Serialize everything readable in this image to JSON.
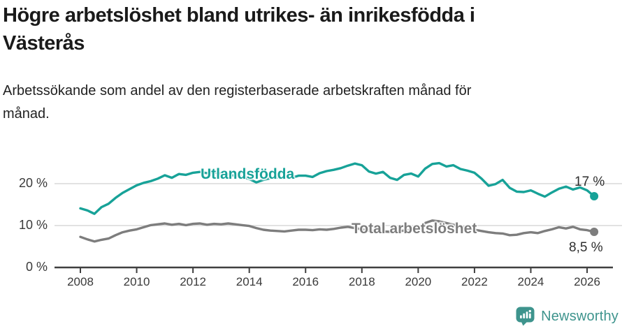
{
  "title": "Högre arbetslöshet bland utrikes- än inrikesfödda i\nVästerås",
  "subtitle": "Arbetssökande som andel av den registerbaserade arbetskraften månad för\nmånad.",
  "branding": {
    "logo_text": "Newsworthy",
    "logo_icon": "speech-bubble-bar-chart-icon"
  },
  "colors": {
    "accent_teal": "#17a298",
    "line_gray": "#7d7d7d",
    "grid": "#d8d8d8",
    "axis": "#3f3f3f",
    "logo": "#3e948d"
  },
  "chart_data": {
    "type": "line",
    "title": "Högre arbetslöshet bland utrikes- än inrikesfödda i Västerås",
    "xlabel": "",
    "ylabel": "Arbetssökande som andel av den registerbaserade arbetskraften",
    "xlim": [
      2007.85,
      2026.55
    ],
    "ylim": [
      0,
      27
    ],
    "grid": "horizontal",
    "legend_position": "inline-labels",
    "x_tick_years": [
      2008,
      2010,
      2012,
      2014,
      2016,
      2018,
      2020,
      2022,
      2024,
      2026
    ],
    "y_ticks": [
      {
        "value": 0,
        "label": "0 %"
      },
      {
        "value": 10,
        "label": "10 %"
      },
      {
        "value": 20,
        "label": "20 %"
      }
    ],
    "x": [
      2008.0,
      2008.25,
      2008.5,
      2008.75,
      2009.0,
      2009.25,
      2009.5,
      2009.75,
      2010.0,
      2010.25,
      2010.5,
      2010.75,
      2011.0,
      2011.25,
      2011.5,
      2011.75,
      2012.0,
      2012.25,
      2012.5,
      2012.75,
      2013.0,
      2013.25,
      2013.5,
      2013.75,
      2014.0,
      2014.25,
      2014.5,
      2014.75,
      2015.0,
      2015.25,
      2015.5,
      2015.75,
      2016.0,
      2016.25,
      2016.5,
      2016.75,
      2017.0,
      2017.25,
      2017.5,
      2017.75,
      2018.0,
      2018.25,
      2018.5,
      2018.75,
      2019.0,
      2019.25,
      2019.5,
      2019.75,
      2020.0,
      2020.25,
      2020.5,
      2020.75,
      2021.0,
      2021.25,
      2021.5,
      2021.75,
      2022.0,
      2022.25,
      2022.5,
      2022.75,
      2023.0,
      2023.25,
      2023.5,
      2023.75,
      2024.0,
      2024.25,
      2024.5,
      2024.75,
      2025.0,
      2025.25,
      2025.5,
      2025.75,
      2026.0,
      2026.25
    ],
    "series": [
      {
        "name": "Utlandsfödda",
        "color": "#17a298",
        "end_label": "17 %",
        "end_value": 17.0,
        "values": [
          14.1,
          13.6,
          12.8,
          14.4,
          15.2,
          16.6,
          17.8,
          18.7,
          19.6,
          20.2,
          20.6,
          21.2,
          22.0,
          21.4,
          22.3,
          22.1,
          22.6,
          22.8,
          22.5,
          22.7,
          22.4,
          22.2,
          21.9,
          21.6,
          21.1,
          20.3,
          20.9,
          21.3,
          21.5,
          21.6,
          21.4,
          21.9,
          21.9,
          21.6,
          22.5,
          23.0,
          23.3,
          23.7,
          24.3,
          24.8,
          24.4,
          22.9,
          22.4,
          22.8,
          21.4,
          20.9,
          22.1,
          22.4,
          21.7,
          23.6,
          24.7,
          24.9,
          24.1,
          24.4,
          23.5,
          23.1,
          22.6,
          21.2,
          19.5,
          19.9,
          20.9,
          19.0,
          18.1,
          18.0,
          18.4,
          17.6,
          16.9,
          17.9,
          18.8,
          19.3,
          18.6,
          19.1,
          18.4,
          17.0
        ]
      },
      {
        "name": "Total arbetslöshet",
        "color": "#7d7d7d",
        "end_label": "8,5 %",
        "end_value": 8.5,
        "values": [
          7.3,
          6.7,
          6.2,
          6.6,
          6.9,
          7.7,
          8.4,
          8.8,
          9.1,
          9.6,
          10.1,
          10.3,
          10.5,
          10.2,
          10.4,
          10.1,
          10.4,
          10.5,
          10.2,
          10.4,
          10.3,
          10.5,
          10.3,
          10.1,
          9.9,
          9.4,
          9.0,
          8.8,
          8.7,
          8.6,
          8.8,
          9.0,
          9.0,
          8.9,
          9.1,
          9.0,
          9.2,
          9.5,
          9.7,
          9.4,
          9.1,
          8.8,
          8.7,
          8.6,
          8.5,
          8.6,
          8.8,
          8.9,
          9.2,
          10.6,
          11.2,
          11.0,
          10.6,
          10.2,
          9.8,
          9.4,
          9.0,
          8.7,
          8.4,
          8.2,
          8.1,
          7.7,
          7.8,
          8.2,
          8.4,
          8.2,
          8.7,
          9.1,
          9.6,
          9.3,
          9.7,
          9.1,
          8.9,
          8.5
        ]
      }
    ]
  }
}
